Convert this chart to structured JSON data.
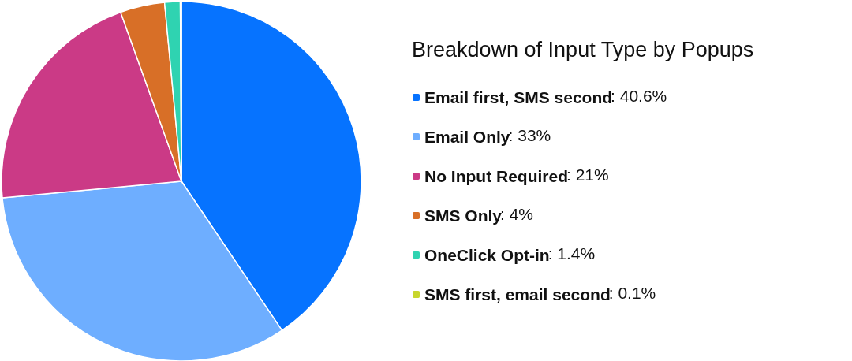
{
  "chart_data": {
    "type": "pie",
    "title": "Breakdown of Input Type by Popups",
    "categories": [
      "Email first, SMS second",
      "Email Only",
      "No Input Required",
      "SMS Only",
      "OneClick Opt-in",
      "SMS first, email second"
    ],
    "values": [
      40.6,
      33,
      21,
      4,
      1.4,
      0.1
    ],
    "value_labels": [
      ": 40.6%",
      ": 33%",
      ": 21%",
      ": 4%",
      ": 1.4%",
      ": 0.1%"
    ],
    "colors": [
      "#0673ff",
      "#6eaeff",
      "#cb3a86",
      "#d86f27",
      "#2fd3b1",
      "#c8d62d"
    ],
    "legend": "right"
  }
}
